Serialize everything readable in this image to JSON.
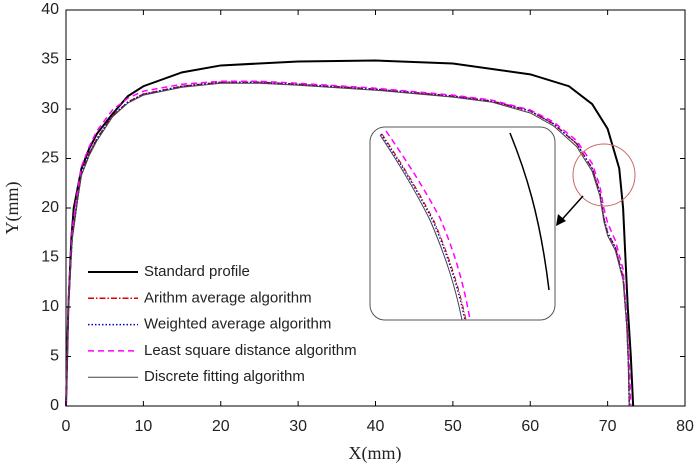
{
  "chart_data": {
    "type": "line",
    "xlabel": "X(mm)",
    "ylabel": "Y(mm)",
    "xlim": [
      0,
      80
    ],
    "xticks": [
      0,
      10,
      20,
      30,
      40,
      50,
      60,
      70,
      80
    ],
    "ylim": [
      0,
      40
    ],
    "yticks": [
      0,
      5,
      10,
      15,
      20,
      25,
      30,
      35,
      40
    ],
    "legend": "lower left",
    "series": [
      {
        "name": "Standard profile",
        "color": "#000000",
        "linestyle": "solid",
        "width": 2,
        "x": [
          0,
          0.3,
          0.7,
          1,
          1.5,
          2,
          3,
          4,
          6,
          8,
          10,
          15,
          20,
          30,
          40,
          50,
          60,
          65,
          68,
          70,
          71.5,
          72,
          72.3,
          72.6,
          73,
          73.3
        ],
        "values": [
          0,
          10,
          17,
          20,
          22,
          24,
          26,
          27.5,
          29.5,
          31.3,
          32.3,
          33.7,
          34.4,
          34.8,
          34.9,
          34.6,
          33.5,
          32.3,
          30.5,
          28,
          24,
          20,
          15,
          10,
          5,
          0
        ]
      },
      {
        "name": "Arithm average algorithm",
        "color": "#e00000",
        "linestyle": "dashdot",
        "width": 1.5,
        "x": [
          0,
          0.3,
          0.8,
          1.5,
          2,
          3,
          4,
          6,
          8,
          10,
          15,
          20,
          25,
          30,
          40,
          50,
          55,
          60,
          63,
          66,
          68,
          69,
          69.5,
          70,
          71,
          72,
          72.5,
          72.7,
          72.8
        ],
        "values": [
          0,
          10,
          17,
          21,
          23.5,
          25.5,
          27,
          29.3,
          30.7,
          31.5,
          32.3,
          32.7,
          32.7,
          32.5,
          32,
          31.3,
          30.8,
          29.8,
          28.5,
          26.5,
          24,
          21.5,
          19,
          17.5,
          16,
          13,
          8,
          4,
          0
        ]
      },
      {
        "name": "Weighted average algorithm",
        "color": "#0000cc",
        "linestyle": "dotted",
        "width": 1.5,
        "x": [
          0,
          0.3,
          0.8,
          1.5,
          2,
          3,
          4,
          6,
          8,
          10,
          15,
          20,
          25,
          30,
          40,
          50,
          55,
          60,
          63,
          66,
          68,
          69,
          69.5,
          70,
          71,
          72,
          72.5,
          72.7,
          72.8
        ],
        "values": [
          0,
          10,
          17,
          21,
          23.5,
          25.5,
          27,
          29.3,
          30.7,
          31.5,
          32.3,
          32.7,
          32.7,
          32.5,
          32,
          31.3,
          30.8,
          29.8,
          28.5,
          26.5,
          24,
          21.5,
          19,
          17.5,
          16,
          13,
          8,
          4,
          0
        ]
      },
      {
        "name": "Least square distance algorithm",
        "color": "#ff00ff",
        "linestyle": "dashed",
        "width": 1.5,
        "x": [
          0,
          0.3,
          0.8,
          1.5,
          2,
          3,
          4,
          6,
          8,
          10,
          15,
          20,
          25,
          30,
          40,
          50,
          55,
          60,
          63,
          66,
          68,
          69,
          69.5,
          70,
          71,
          72,
          72.5,
          72.8,
          73
        ],
        "values": [
          0,
          10.5,
          17.8,
          21.8,
          24.2,
          26.2,
          27.8,
          29.9,
          31.1,
          31.8,
          32.5,
          32.8,
          32.8,
          32.6,
          32.1,
          31.4,
          30.9,
          29.9,
          28.7,
          26.8,
          24.5,
          22.2,
          20,
          18.5,
          16.7,
          13.8,
          8.5,
          4.3,
          0
        ]
      },
      {
        "name": "Discrete fitting algorithm",
        "color": "#444444",
        "linestyle": "solid",
        "width": 1,
        "x": [
          0,
          0.3,
          0.8,
          1.5,
          2,
          3,
          4,
          6,
          8,
          10,
          15,
          20,
          25,
          30,
          40,
          50,
          55,
          60,
          63,
          66,
          68,
          69,
          69.5,
          70,
          71,
          72,
          72.5,
          72.7,
          72.8
        ],
        "values": [
          0,
          9.8,
          16.8,
          20.8,
          23.3,
          25.3,
          26.8,
          29.2,
          30.6,
          31.4,
          32.2,
          32.6,
          32.6,
          32.4,
          31.9,
          31.2,
          30.7,
          29.6,
          28.3,
          26.2,
          23.7,
          21.2,
          18.7,
          17.2,
          15.7,
          12.7,
          7.8,
          3.8,
          0
        ]
      }
    ]
  }
}
